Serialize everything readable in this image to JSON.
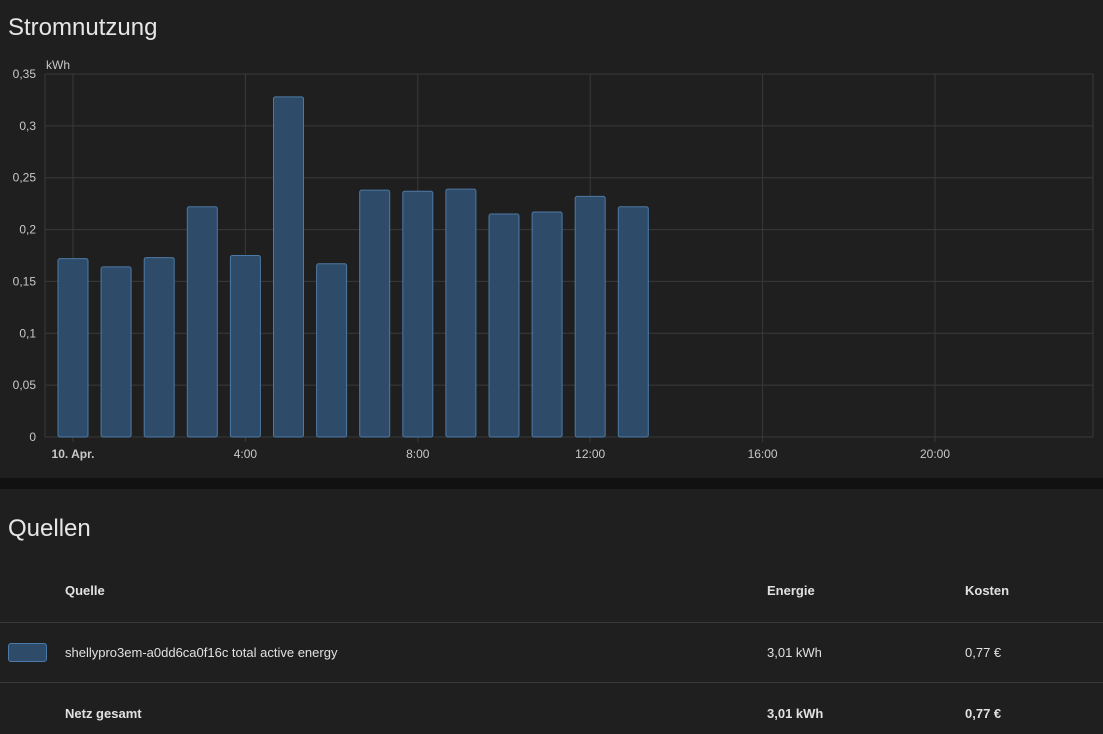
{
  "chart_card": {
    "title": "Stromnutzung"
  },
  "chart_data": {
    "type": "bar",
    "ylabel": "kWh",
    "ylim": [
      0,
      0.35
    ],
    "y_ticks": [
      "0",
      "0,05",
      "0,1",
      "0,15",
      "0,2",
      "0,25",
      "0,3",
      "0,35"
    ],
    "x_ticks": [
      {
        "hour": 0,
        "label": "10. Apr.",
        "bold": true
      },
      {
        "hour": 4,
        "label": "4:00",
        "bold": false
      },
      {
        "hour": 8,
        "label": "8:00",
        "bold": false
      },
      {
        "hour": 12,
        "label": "12:00",
        "bold": false
      },
      {
        "hour": 16,
        "label": "16:00",
        "bold": false
      },
      {
        "hour": 20,
        "label": "20:00",
        "bold": false
      }
    ],
    "x_range_hours": [
      0,
      24
    ],
    "grid": true,
    "series": [
      {
        "name": "shellypro3em-a0dd6ca0f16c total active energy",
        "color": "#2e4c69",
        "hours": [
          0,
          1,
          2,
          3,
          4,
          5,
          6,
          7,
          8,
          9,
          10,
          11,
          12,
          13
        ],
        "values": [
          0.172,
          0.164,
          0.173,
          0.222,
          0.175,
          0.328,
          0.167,
          0.238,
          0.237,
          0.239,
          0.215,
          0.217,
          0.232,
          0.222
        ]
      }
    ]
  },
  "sources_card": {
    "title": "Quellen",
    "columns": {
      "source": "Quelle",
      "energy": "Energie",
      "cost": "Kosten"
    },
    "rows": [
      {
        "color": "#2e4c69",
        "name": "shellypro3em-a0dd6ca0f16c total active energy",
        "energy": "3,01 kWh",
        "cost": "0,77 €"
      }
    ],
    "total": {
      "name": "Netz gesamt",
      "energy": "3,01 kWh",
      "cost": "0,77 €"
    }
  }
}
